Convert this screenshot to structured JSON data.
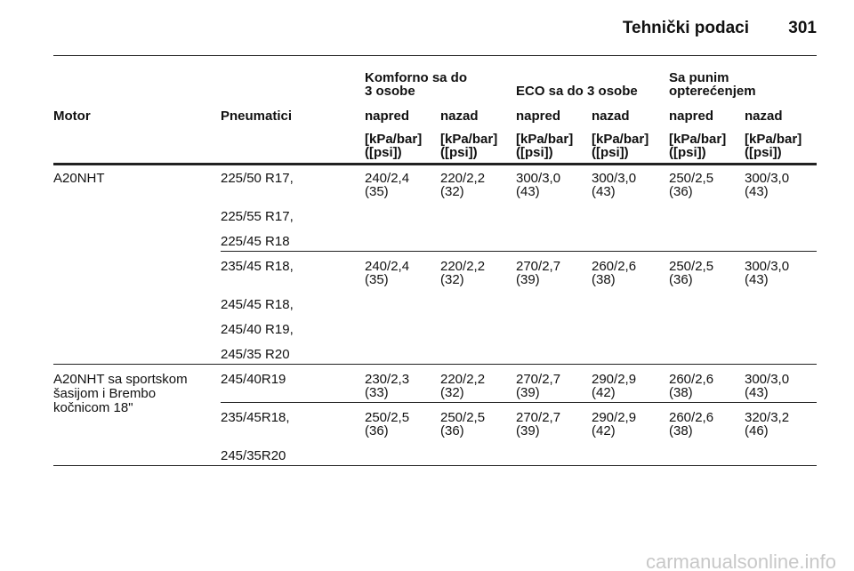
{
  "header": {
    "title": "Tehnički podaci",
    "page": "301"
  },
  "table": {
    "group_headers": [
      [
        "Komforno sa do",
        "3 osobe"
      ],
      [
        "ECO sa do 3 osobe"
      ],
      [
        "Sa punim",
        "opterećenjem"
      ]
    ],
    "columns": [
      "Motor",
      "Pneumatici",
      "napred",
      "nazad",
      "napred",
      "nazad",
      "napred",
      "nazad"
    ],
    "units": [
      [
        "[kPa/bar]",
        "([psi])"
      ],
      [
        "[kPa/bar]",
        "([psi])"
      ],
      [
        "[kPa/bar]",
        "([psi])"
      ],
      [
        "[kPa/bar]",
        "([psi])"
      ],
      [
        "[kPa/bar]",
        "([psi])"
      ],
      [
        "[kPa/bar]",
        "([psi])"
      ]
    ],
    "groups": [
      {
        "motor": [
          "A20NHT"
        ],
        "rows": [
          {
            "tyres": [
              "225/50 R17,",
              "225/55 R17,",
              "225/45 R18"
            ],
            "values": [
              [
                "240/2,4",
                "(35)"
              ],
              [
                "220/2,2",
                "(32)"
              ],
              [
                "300/3,0",
                "(43)"
              ],
              [
                "300/3,0",
                "(43)"
              ],
              [
                "250/2,5",
                "(36)"
              ],
              [
                "300/3,0",
                "(43)"
              ]
            ]
          },
          {
            "tyres": [
              "235/45 R18,",
              "245/45 R18,",
              "245/40 R19,",
              "245/35 R20"
            ],
            "values": [
              [
                "240/2,4",
                "(35)"
              ],
              [
                "220/2,2",
                "(32)"
              ],
              [
                "270/2,7",
                "(39)"
              ],
              [
                "260/2,6",
                "(38)"
              ],
              [
                "250/2,5",
                "(36)"
              ],
              [
                "300/3,0",
                "(43)"
              ]
            ]
          }
        ]
      },
      {
        "motor": [
          "A20NHT sa sportskom",
          "šasijom i Brembo",
          "kočnicom 18\""
        ],
        "rows": [
          {
            "tyres": [
              "245/40R19"
            ],
            "values": [
              [
                "230/2,3",
                "(33)"
              ],
              [
                "220/2,2",
                "(32)"
              ],
              [
                "270/2,7",
                "(39)"
              ],
              [
                "290/2,9",
                "(42)"
              ],
              [
                "260/2,6",
                "(38)"
              ],
              [
                "300/3,0",
                "(43)"
              ]
            ]
          },
          {
            "tyres": [
              "235/45R18,",
              "245/35R20"
            ],
            "values": [
              [
                "250/2,5",
                "(36)"
              ],
              [
                "250/2,5",
                "(36)"
              ],
              [
                "270/2,7",
                "(39)"
              ],
              [
                "290/2,9",
                "(42)"
              ],
              [
                "260/2,6",
                "(38)"
              ],
              [
                "320/3,2",
                "(46)"
              ]
            ]
          }
        ]
      }
    ]
  },
  "footer": {
    "watermark": "carmanualsonline.info"
  }
}
